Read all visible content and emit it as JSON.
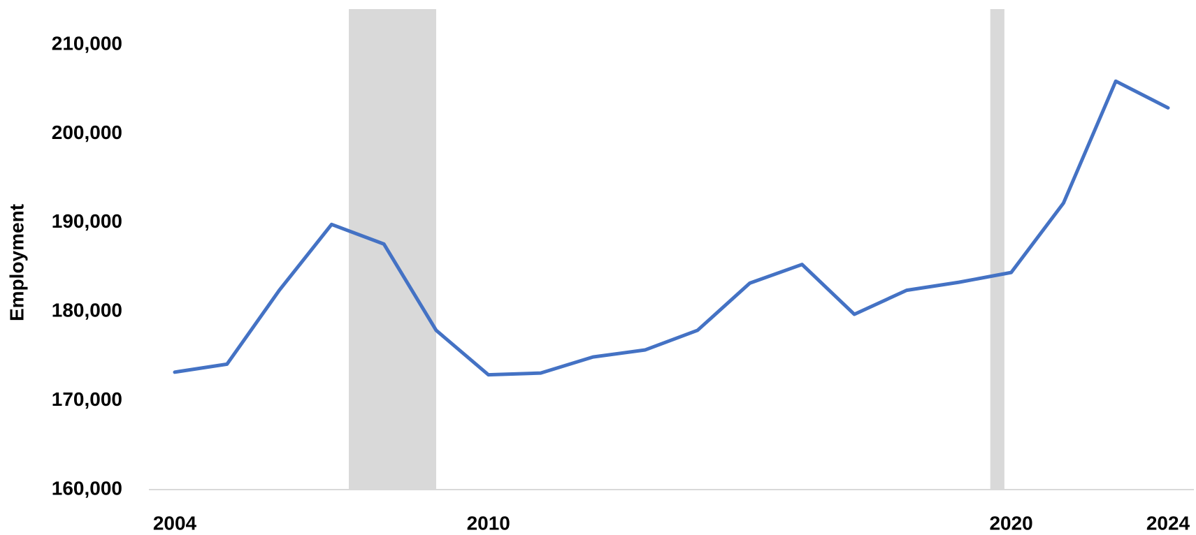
{
  "chart_data": {
    "type": "line",
    "y_label": "Employment",
    "categories": [
      "2004",
      null,
      null,
      null,
      null,
      null,
      "2010",
      null,
      null,
      null,
      null,
      null,
      null,
      null,
      null,
      null,
      "2020",
      null,
      null,
      "2024"
    ],
    "series": [
      {
        "name": "Employment",
        "color": "#4472c4",
        "values": [
          173200,
          174100,
          182400,
          189800,
          187600,
          177900,
          172900,
          173100,
          174900,
          175700,
          177900,
          183200,
          185300,
          179700,
          182400,
          183300,
          184400,
          192200,
          205900,
          202900
        ]
      }
    ],
    "shaded_ranges": [
      [
        3.33,
        5.0
      ],
      [
        15.6,
        15.87
      ]
    ],
    "shade_color": "#d9d9d9",
    "ylim": [
      160000,
      214000
    ],
    "yticks": [
      {
        "value": 160000,
        "label": "160,000"
      },
      {
        "value": 170000,
        "label": "170,000"
      },
      {
        "value": 180000,
        "label": "180,000"
      },
      {
        "value": 190000,
        "label": "190,000"
      },
      {
        "value": 200000,
        "label": "200,000"
      },
      {
        "value": 210000,
        "label": "210,000"
      }
    ],
    "grid": false,
    "legend": false
  }
}
